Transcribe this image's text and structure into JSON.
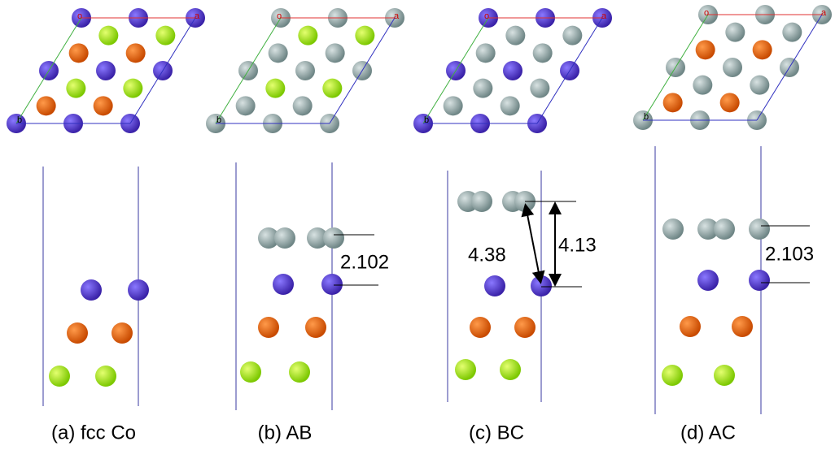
{
  "panels": [
    {
      "caption": "(a) fcc Co",
      "labels": {
        "o": "o",
        "a": "a",
        "b": "b"
      }
    },
    {
      "caption": "(b) AB",
      "labels": {
        "o": "o",
        "a": "a",
        "b": "b"
      },
      "distance": "2.102"
    },
    {
      "caption": "(c) BC",
      "labels": {
        "o": "o",
        "a": "a",
        "b": "b"
      },
      "distance": "4.13",
      "diagonal": "4.38"
    },
    {
      "caption": "(d) AC",
      "labels": {
        "o": "o",
        "a": "a",
        "b": "b"
      },
      "distance": "2.103"
    }
  ]
}
